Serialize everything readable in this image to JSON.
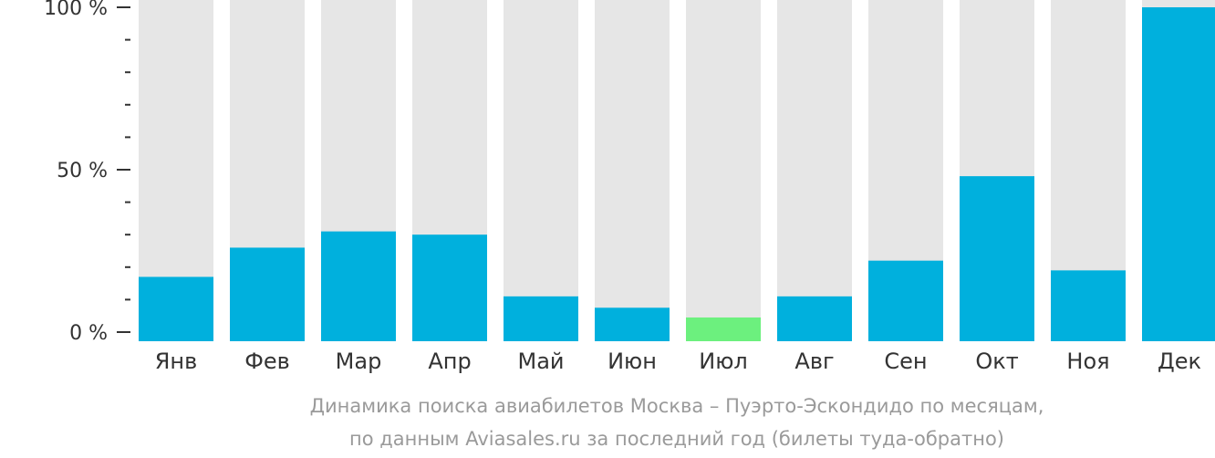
{
  "chart_data": {
    "type": "bar",
    "categories": [
      "Янв",
      "Фев",
      "Мар",
      "Апр",
      "Май",
      "Июн",
      "Июл",
      "Авг",
      "Сен",
      "Окт",
      "Ноя",
      "Дек"
    ],
    "values": [
      17,
      26,
      31,
      30,
      11,
      7.5,
      4.5,
      11,
      22,
      48,
      19,
      100
    ],
    "ylim": [
      0,
      100
    ],
    "y_ticks": [
      "0 %",
      "50 %",
      "100 %"
    ],
    "y_tick_values": [
      0,
      50,
      100
    ],
    "highlight_index": 6,
    "colors": {
      "bar": "#00b0dd",
      "highlight": "#6cf07e",
      "background_bar": "#e6e6e6",
      "axis": "#333333"
    },
    "caption_lines": [
      "Динамика поиска авиабилетов Москва – Пуэрто-Эскондидо по месяцам,",
      "по данным Aviasales.ru за последний год (билеты туда-обратно)"
    ]
  }
}
